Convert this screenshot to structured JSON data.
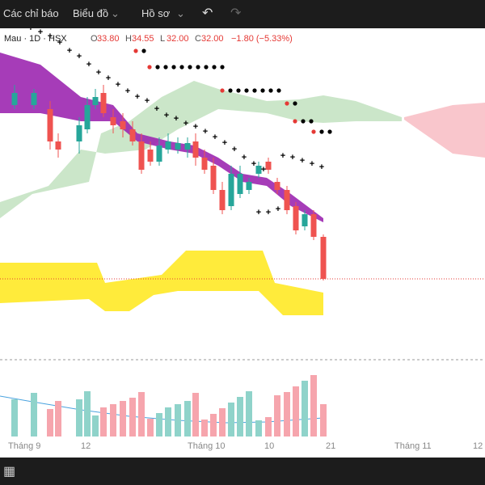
{
  "toolbar": {
    "items": [
      "Các chỉ báo",
      "Biểu đồ",
      "Hồ sơ"
    ]
  },
  "legend": {
    "symbol": "Mau · 1D · HSX",
    "ohlc": [
      {
        "label": "O",
        "value": "33.80"
      },
      {
        "label": "H",
        "value": "34.55"
      },
      {
        "label": "L",
        "value": "32.00"
      },
      {
        "label": "C",
        "value": "32.00"
      }
    ],
    "change": "−1.80 (−5.33%)"
  },
  "x_axis": {
    "labels": [
      "Tháng 9",
      "12",
      "Tháng 10",
      "10",
      "21",
      "Tháng 11",
      "12"
    ]
  }
}
